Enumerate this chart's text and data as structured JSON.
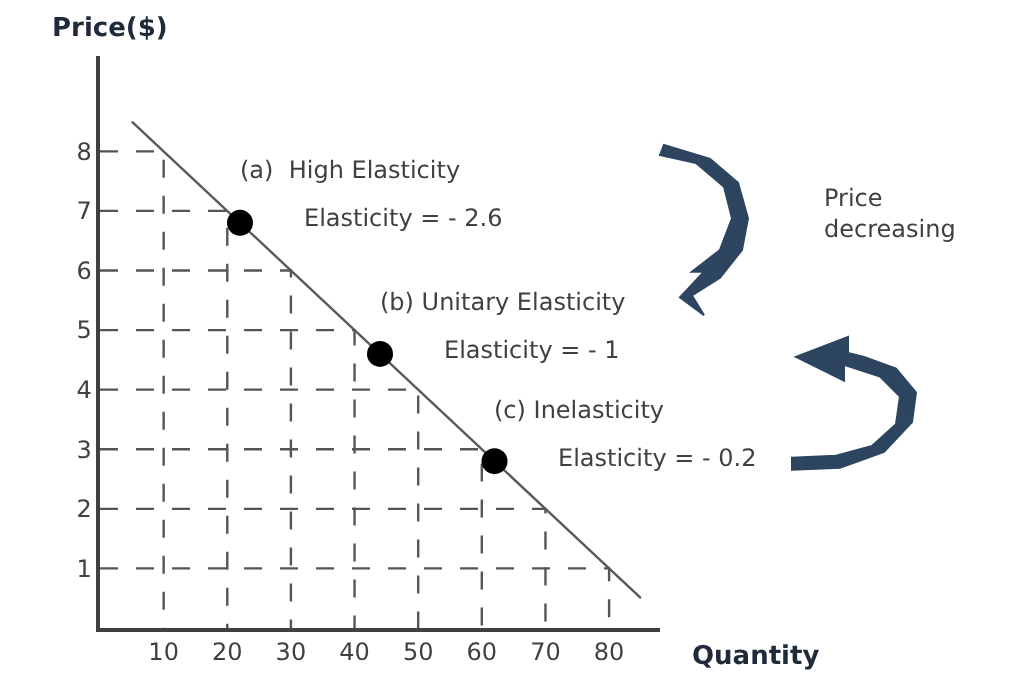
{
  "chart_data": {
    "type": "line",
    "xlabel": "Quantity",
    "ylabel": "Price($)",
    "xlim": [
      0,
      88
    ],
    "ylim": [
      0,
      9.6
    ],
    "xticks": [
      10,
      20,
      30,
      40,
      50,
      60,
      70,
      80
    ],
    "yticks": [
      1,
      2,
      3,
      4,
      5,
      6,
      7,
      8
    ],
    "series": [
      {
        "line_style": "dashed",
        "marker": "none",
        "color": "#555555",
        "x": [
          0,
          10,
          10,
          null,
          0,
          20,
          20,
          null,
          0,
          30,
          30,
          null,
          0,
          40,
          40,
          null,
          0,
          50,
          50,
          null,
          0,
          60,
          60,
          null,
          0,
          70,
          70,
          null,
          0,
          80,
          80
        ],
        "values": [
          8,
          8,
          0,
          null,
          7,
          7,
          0,
          null,
          6,
          6,
          0,
          null,
          5,
          5,
          0,
          null,
          4,
          4,
          0,
          null,
          3,
          3,
          0,
          null,
          2,
          2,
          0,
          null,
          1,
          1,
          0
        ]
      },
      {
        "line_style": "solid",
        "marker": "none",
        "color": "#595959",
        "x": [
          5,
          85
        ],
        "values": [
          8.5,
          0.5
        ]
      },
      {
        "type": "scatter",
        "marker": "circle",
        "color": "#000000",
        "x": [
          22,
          44,
          62
        ],
        "values": [
          6.8,
          4.6,
          2.8
        ]
      }
    ],
    "annotations": [
      {
        "text": "(a)  High Elasticity",
        "x": 22,
        "y": 6.8
      },
      {
        "text": "Elasticity = - 2.6",
        "x": 22,
        "y": 6.8
      },
      {
        "text": "(b) Unitary Elasticity",
        "x": 44,
        "y": 4.6
      },
      {
        "text": "Elasticity = - 1",
        "x": 44,
        "y": 4.6
      },
      {
        "text": "(c) Inelasticity",
        "x": 62,
        "y": 2.8
      },
      {
        "text": "Elasticity = - 0.2",
        "x": 62,
        "y": 2.8
      },
      "Price\ndecreasing"
    ]
  }
}
